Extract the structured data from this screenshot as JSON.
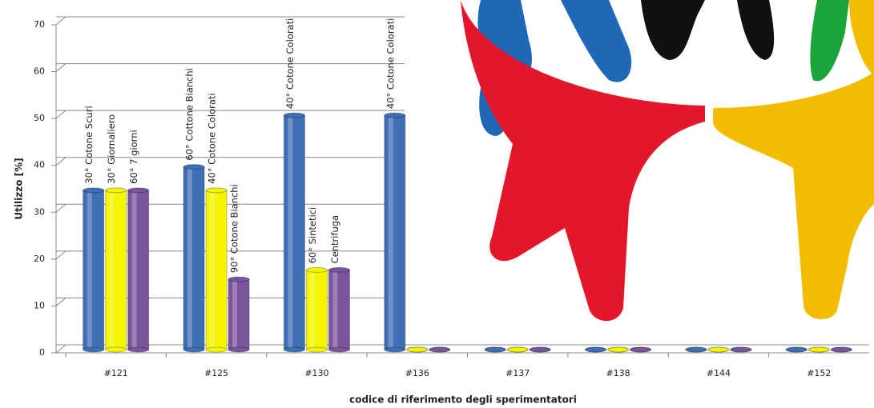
{
  "chart_data": {
    "type": "bar",
    "y_label": "Utilizzo [%]",
    "x_label": "codice di riferimento degli sperimentatori",
    "categories": [
      "#121",
      "#125",
      "#130",
      "#136",
      "#137",
      "#138",
      "#144",
      "#152"
    ],
    "series": [
      {
        "color": "#3f6fb5",
        "values": [
          34,
          39,
          50,
          50,
          0,
          0,
          0,
          0
        ],
        "bar_labels": [
          "30° Cotone  Scuri",
          "60° Cottone Bianchi",
          "40° Cotone  Colorati",
          "40° Cotone  Colorati",
          null,
          null,
          null,
          null
        ]
      },
      {
        "color": "#f5f500",
        "values": [
          34,
          34,
          17,
          0,
          0,
          0,
          0,
          0
        ],
        "bar_labels": [
          "30° Giornaliero",
          "40° Cotone  Colorati",
          "60° Sintetici",
          null,
          null,
          null,
          null,
          null
        ]
      },
      {
        "color": "#7b559b",
        "values": [
          34,
          15,
          17,
          0,
          0,
          0,
          0,
          0
        ],
        "bar_labels": [
          "60° 7 giorni",
          "90° Cotone Bianchi",
          "Centrifuga",
          null,
          null,
          null,
          null,
          null
        ]
      }
    ],
    "ylim": [
      0,
      70
    ],
    "yticks": [
      0,
      10,
      20,
      30,
      40,
      50,
      60,
      70
    ],
    "grid": true
  }
}
